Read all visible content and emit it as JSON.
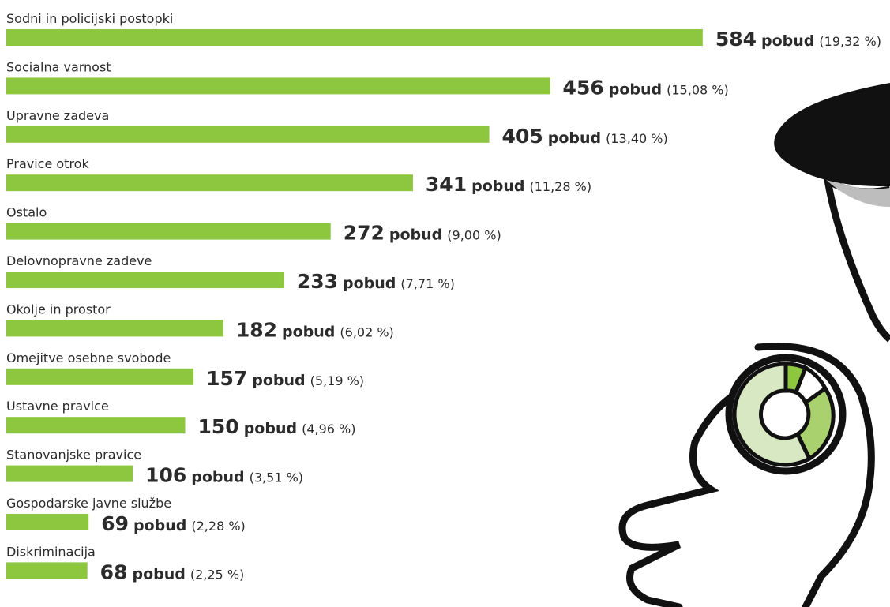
{
  "chart_data": {
    "type": "bar",
    "orientation": "horizontal",
    "color": "#8dc63f",
    "categories": [
      "Sodni in policijski postopki",
      "Socialna varnost",
      "Upravne zadeva",
      "Pravice otrok",
      "Ostalo",
      "Delovnopravne zadeve",
      "Okolje in prostor",
      "Omejitve osebne svobode",
      "Ustavne pravice",
      "Stanovanjske pravice",
      "Gospodarske javne službe",
      "Diskriminacija"
    ],
    "values": [
      584,
      456,
      405,
      341,
      272,
      233,
      182,
      157,
      150,
      106,
      69,
      68
    ],
    "unit": "pobud",
    "share_labels": [
      "(19,32 %)",
      "(15,08 %)",
      "(13,40 %)",
      "(11,28 %)",
      "(9,00 %)",
      "(7,71 %)",
      "(6,02 %)",
      "(5,19 %)",
      "(4,96 %)",
      "(3,51 %)",
      "(2,28 %)",
      "(2,25 %)"
    ]
  }
}
